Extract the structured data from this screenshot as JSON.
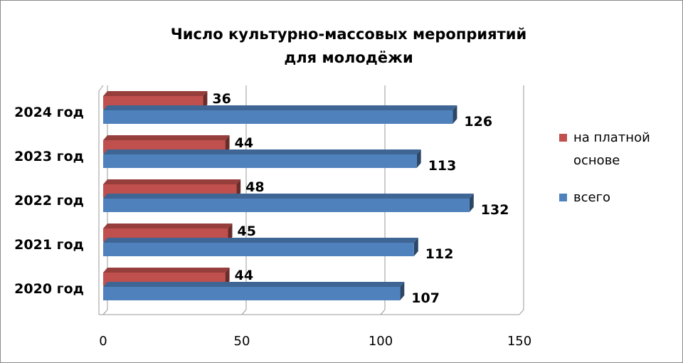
{
  "chart_data": {
    "type": "bar",
    "orientation": "horizontal",
    "style": "3d-clustered",
    "title": [
      "Число культурно-массовых мероприятий",
      "для молодёжи"
    ],
    "categories": [
      "2020 год",
      "2021 год",
      "2022 год",
      "2023 год",
      "2024 год"
    ],
    "series": [
      {
        "name": "на платной основе",
        "legend_lines": [
          "на платной",
          "основе"
        ],
        "color": "#c0504d",
        "values": [
          44,
          45,
          48,
          44,
          36
        ]
      },
      {
        "name": "всего",
        "legend_lines": [
          "всего"
        ],
        "color": "#4f81bd",
        "values": [
          107,
          112,
          132,
          113,
          126
        ]
      }
    ],
    "xlim": [
      0,
      150
    ],
    "xticks": [
      0,
      50,
      100,
      150
    ],
    "grid": "vertical",
    "legend": "right"
  }
}
